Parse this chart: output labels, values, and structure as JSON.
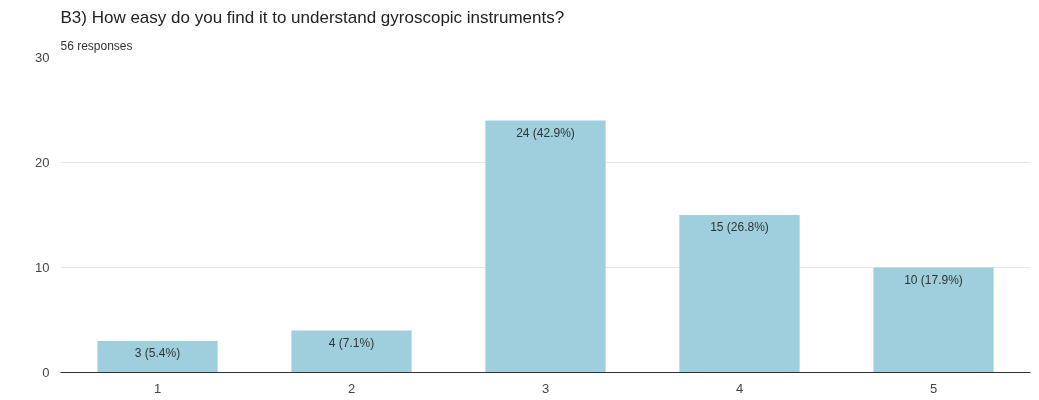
{
  "chart_data": {
    "type": "bar",
    "title": "B3)  How easy do you find it to understand gyroscopic instruments?",
    "subtitle": "56 responses",
    "categories": [
      "1",
      "2",
      "3",
      "4",
      "5"
    ],
    "values": [
      3,
      4,
      24,
      15,
      10
    ],
    "value_labels": [
      "3 (5.4%)",
      "4 (7.1%)",
      "24 (42.9%)",
      "15 (26.8%)",
      "10 (17.9%)"
    ],
    "color": "#9fcfdc",
    "ylim": [
      0,
      30
    ],
    "yticks": [
      0,
      10,
      20,
      30
    ],
    "grid": "y"
  }
}
